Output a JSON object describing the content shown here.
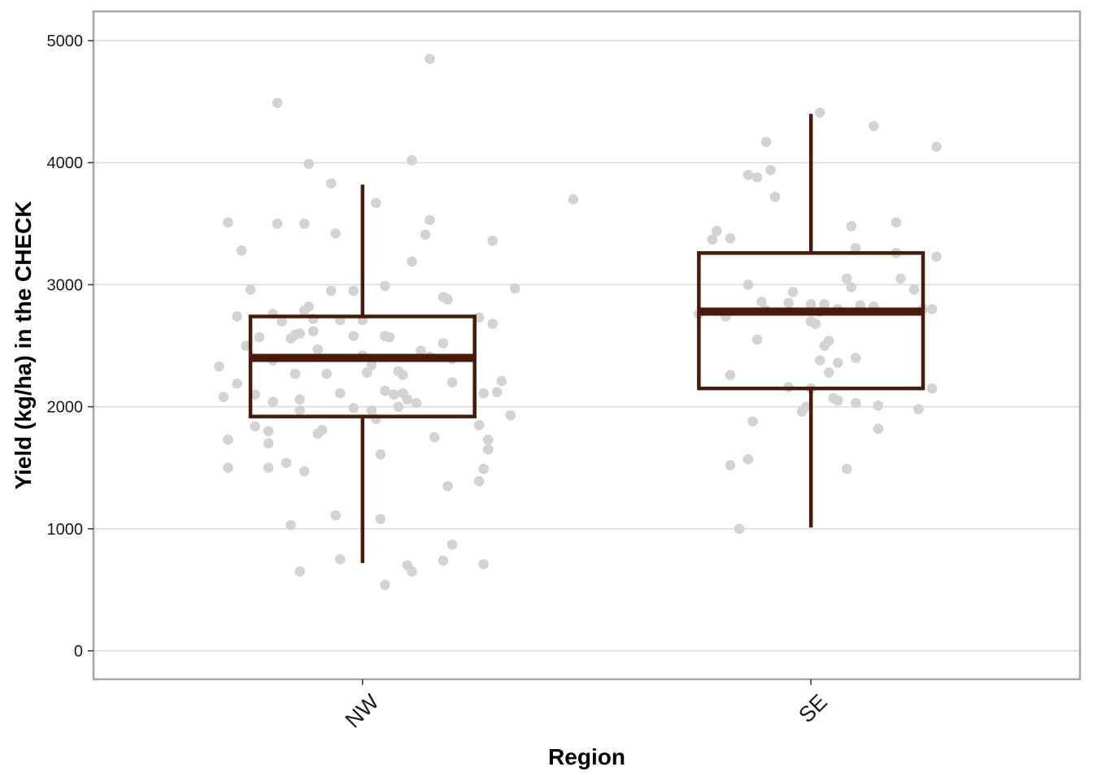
{
  "chart_data": {
    "type": "box",
    "xlabel": "Region",
    "ylabel": "Yield (kg/ha) in the CHECK",
    "ylim": [
      -233,
      5240
    ],
    "yticks": [
      0,
      1000,
      2000,
      3000,
      4000,
      5000
    ],
    "ytick_labels": [
      "0",
      "1000",
      "2000",
      "3000",
      "4000",
      "5000"
    ],
    "grid": "horizontal major",
    "categories": [
      "NW",
      "SE"
    ],
    "boxes": [
      {
        "category": "NW",
        "whisker_low": 720,
        "q1": 1920,
        "median": 2400,
        "q3": 2740,
        "whisker_high": 3820
      },
      {
        "category": "SE",
        "whisker_low": 1010,
        "q1": 2150,
        "median": 2780,
        "q3": 3260,
        "whisker_high": 4400
      }
    ],
    "points": [
      {
        "category": "NW",
        "jitter": [
          -0.19,
          0.15,
          0.11,
          -0.12,
          0.47,
          -0.07,
          0.03,
          0.15,
          -0.3,
          -0.13,
          -0.19,
          -0.06,
          0.14,
          0.29,
          0.11,
          -0.27,
          -0.25,
          -0.02,
          0.05,
          -0.07,
          0.34,
          -0.12,
          0.18,
          -0.13,
          0.19,
          -0.28,
          -0.2,
          -0.11,
          0.26,
          -0.18,
          -0.11,
          0.0,
          -0.14,
          -0.23,
          -0.15,
          0.06,
          0.05,
          -0.02,
          -0.16,
          0.29,
          -0.05,
          0.18,
          -0.26,
          -0.1,
          0.13,
          0.0,
          0.15,
          -0.2,
          -0.32,
          -0.15,
          -0.08,
          0.02,
          0.08,
          0.09,
          -0.28,
          0.2,
          0.01,
          0.31,
          0.3,
          0.07,
          0.09,
          0.27,
          0.05,
          -0.05,
          -0.24,
          -0.31,
          0.12,
          -0.14,
          0.1,
          -0.2,
          -0.14,
          0.33,
          -0.02,
          0.08,
          0.02,
          0.03,
          0.26,
          -0.24,
          -0.1,
          -0.09,
          -0.21,
          0.16,
          0.28,
          -0.3,
          -0.21,
          0.28,
          0.04,
          -0.17,
          -0.3,
          0.27,
          -0.21,
          -0.13,
          0.19,
          0.26,
          -0.06,
          0.04,
          -0.16,
          0.2,
          0.18,
          -0.05,
          0.27,
          -0.14,
          0.1,
          0.11,
          0.05,
          0.2
        ],
        "values": [
          4490,
          4850,
          4020,
          3990,
          3700,
          3830,
          3670,
          3530,
          3510,
          3500,
          3500,
          3420,
          3410,
          3360,
          3190,
          3280,
          2960,
          2950,
          2990,
          2950,
          2970,
          2820,
          2900,
          2790,
          2880,
          2740,
          2760,
          2720,
          2730,
          2700,
          2620,
          2710,
          2600,
          2570,
          2590,
          2570,
          2580,
          2580,
          2560,
          2680,
          2710,
          2520,
          2500,
          2470,
          2460,
          2420,
          2410,
          2380,
          2330,
          2270,
          2270,
          2340,
          2290,
          2260,
          2190,
          2200,
          2280,
          2210,
          2120,
          2100,
          2110,
          2110,
          2130,
          2110,
          2100,
          2080,
          2030,
          2060,
          2060,
          2040,
          1970,
          1930,
          1990,
          2000,
          1970,
          1900,
          1850,
          1840,
          1780,
          1810,
          1800,
          1750,
          1730,
          1730,
          1700,
          1650,
          1610,
          1540,
          1500,
          1490,
          1500,
          1470,
          1350,
          1390,
          1110,
          1080,
          1030,
          870,
          740,
          750,
          710,
          650,
          700,
          650,
          540,
          2390
        ]
      },
      {
        "category": "SE",
        "jitter": [
          0.02,
          0.14,
          -0.1,
          0.28,
          -0.09,
          -0.14,
          -0.08,
          -0.12,
          -0.21,
          0.09,
          0.19,
          -0.18,
          0.28,
          0.19,
          -0.22,
          0.1,
          0.2,
          0.08,
          -0.14,
          0.09,
          -0.04,
          0.23,
          -0.11,
          0.25,
          0.03,
          0.11,
          -0.05,
          -0.25,
          0.14,
          0.06,
          0.02,
          0.27,
          0.01,
          0.1,
          -0.12,
          0.0,
          0.04,
          0.06,
          0.04,
          -0.18,
          0.27,
          0.0,
          -0.05,
          0.05,
          0.06,
          0.1,
          0.15,
          0.24,
          -0.01,
          -0.13,
          -0.02,
          0.15,
          0.08,
          -0.14,
          -0.18,
          -0.16,
          0.0,
          -0.1,
          0.03,
          -0.19,
          0.02
        ],
        "values": [
          4410,
          4300,
          4170,
          4130,
          3940,
          3900,
          3720,
          3880,
          3440,
          3480,
          3510,
          3380,
          3230,
          3260,
          3370,
          3300,
          3050,
          3050,
          3000,
          2980,
          2940,
          2960,
          2860,
          2800,
          2840,
          2830,
          2850,
          2760,
          2820,
          2800,
          2780,
          2800,
          2680,
          2400,
          2550,
          2700,
          2540,
          2360,
          2280,
          2260,
          2150,
          2150,
          2160,
          2070,
          2050,
          2030,
          2010,
          1980,
          2000,
          1880,
          1960,
          1820,
          1490,
          1570,
          1520,
          1000,
          2840,
          2790,
          2500,
          2740,
          2380
        ]
      }
    ],
    "colors": {
      "box": "#4a1a08",
      "points": "#d3d3d3",
      "grid": "#d9d9d9",
      "frame": "#a6a6a6"
    }
  }
}
